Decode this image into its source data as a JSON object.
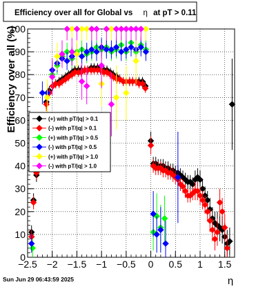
{
  "chart_data": {
    "type": "scatter",
    "title_prefix": "Efficiency over all for Global vs",
    "title_symbol": "η",
    "title_suffix": "at pT > 0.11",
    "xlabel": "η",
    "ylabel": "Efficiency over all (%)",
    "xlim": [
      -2.5,
      1.7
    ],
    "ylim": [
      0,
      100
    ],
    "xticks": [
      -2.5,
      -2,
      -1.5,
      -1,
      -0.5,
      0,
      0.5,
      1,
      1.5
    ],
    "xtick_labels": [
      "−2.5",
      "−2",
      "−1.5",
      "−1",
      "−0.5",
      "0",
      "0.5",
      "1",
      "1.5"
    ],
    "yticks": [
      0,
      10,
      20,
      30,
      40,
      50,
      60,
      70,
      80,
      90,
      100
    ],
    "ytick_labels": [
      "0",
      "10",
      "20",
      "30",
      "40",
      "50",
      "60",
      "70",
      "80",
      "90",
      "100"
    ],
    "grid": true,
    "legend_position": "left-middle",
    "timestamp": "Sun Jun 29 06:43:59 2025",
    "series": [
      {
        "name": "(+) with pT/|q| > 0.1",
        "color": "#000000",
        "marker": "diamond",
        "points": [
          [
            -2.42,
            11,
            3
          ],
          [
            -2.38,
            25,
            3
          ],
          [
            -2.32,
            36,
            3
          ],
          [
            -2.25,
            54,
            4
          ],
          [
            -2.19,
            60,
            3
          ],
          [
            -2.12,
            68,
            3
          ],
          [
            -2.06,
            73,
            2
          ],
          [
            -1.99,
            75,
            2
          ],
          [
            -1.93,
            76,
            2
          ],
          [
            -1.86,
            77,
            2
          ],
          [
            -1.8,
            78,
            2
          ],
          [
            -1.73,
            79,
            2
          ],
          [
            -1.67,
            80,
            2
          ],
          [
            -1.6,
            81,
            2
          ],
          [
            -1.54,
            82,
            2
          ],
          [
            -1.47,
            82,
            2
          ],
          [
            -1.41,
            82,
            2
          ],
          [
            -1.34,
            82,
            2
          ],
          [
            -1.28,
            82,
            2
          ],
          [
            -1.21,
            83,
            2
          ],
          [
            -1.15,
            83,
            2
          ],
          [
            -1.08,
            83,
            2
          ],
          [
            -1.02,
            82,
            2
          ],
          [
            -0.95,
            82,
            2
          ],
          [
            -0.89,
            82,
            2
          ],
          [
            -0.82,
            81,
            2
          ],
          [
            -0.76,
            80,
            2
          ],
          [
            -0.69,
            79,
            2
          ],
          [
            -0.63,
            78,
            2
          ],
          [
            -0.56,
            77,
            2
          ],
          [
            -0.5,
            77,
            2
          ],
          [
            -0.43,
            77,
            2
          ],
          [
            -0.37,
            77,
            2
          ],
          [
            -0.3,
            77,
            2
          ],
          [
            -0.24,
            77,
            2
          ],
          [
            -0.17,
            77,
            2
          ],
          [
            -0.11,
            75,
            2
          ],
          [
            0.0,
            51,
            4
          ],
          [
            0.05,
            41,
            3
          ],
          [
            0.1,
            41,
            3
          ],
          [
            0.15,
            40,
            3
          ],
          [
            0.2,
            40,
            3
          ],
          [
            0.25,
            40,
            3
          ],
          [
            0.3,
            39,
            3
          ],
          [
            0.35,
            39,
            3
          ],
          [
            0.4,
            38,
            3
          ],
          [
            0.45,
            38,
            3
          ],
          [
            0.5,
            37,
            3
          ],
          [
            0.55,
            37,
            3
          ],
          [
            0.6,
            36,
            3
          ],
          [
            0.65,
            35,
            3
          ],
          [
            0.7,
            34,
            3
          ],
          [
            0.75,
            33,
            3
          ],
          [
            0.8,
            33,
            3
          ],
          [
            0.85,
            32,
            3
          ],
          [
            0.9,
            34,
            4
          ],
          [
            0.95,
            35,
            4
          ],
          [
            1.0,
            34,
            4
          ],
          [
            1.05,
            30,
            4
          ],
          [
            1.1,
            27,
            4
          ],
          [
            1.15,
            25,
            4
          ],
          [
            1.2,
            21,
            5
          ],
          [
            1.25,
            17,
            5
          ],
          [
            1.3,
            15,
            5
          ],
          [
            1.35,
            14,
            6
          ],
          [
            1.4,
            13,
            6
          ],
          [
            1.45,
            12,
            6
          ],
          [
            1.5,
            9,
            6
          ],
          [
            1.55,
            6,
            6
          ],
          [
            1.6,
            7,
            6
          ],
          [
            1.65,
            67,
            20
          ]
        ]
      },
      {
        "name": "(-) with pT/|q| > 0.1",
        "color": "#ff0000",
        "marker": "diamond",
        "points": [
          [
            -2.42,
            9,
            3
          ],
          [
            -2.38,
            24,
            3
          ],
          [
            -2.32,
            37,
            3
          ],
          [
            -2.25,
            53,
            4
          ],
          [
            -2.19,
            59,
            3
          ],
          [
            -2.12,
            67,
            3
          ],
          [
            -2.06,
            72,
            2
          ],
          [
            -1.99,
            75,
            2
          ],
          [
            -1.93,
            76,
            2
          ],
          [
            -1.86,
            76,
            2
          ],
          [
            -1.8,
            77,
            2
          ],
          [
            -1.73,
            78,
            2
          ],
          [
            -1.67,
            79,
            2
          ],
          [
            -1.6,
            80,
            2
          ],
          [
            -1.54,
            81,
            2
          ],
          [
            -1.47,
            81,
            2
          ],
          [
            -1.41,
            81,
            2
          ],
          [
            -1.34,
            82,
            2
          ],
          [
            -1.28,
            82,
            2
          ],
          [
            -1.21,
            82,
            2
          ],
          [
            -1.15,
            82,
            2
          ],
          [
            -1.08,
            82,
            2
          ],
          [
            -1.02,
            82,
            2
          ],
          [
            -0.95,
            81,
            2
          ],
          [
            -0.89,
            81,
            2
          ],
          [
            -0.82,
            80,
            2
          ],
          [
            -0.76,
            79,
            2
          ],
          [
            -0.69,
            78,
            2
          ],
          [
            -0.63,
            78,
            2
          ],
          [
            -0.56,
            77,
            2
          ],
          [
            -0.5,
            77,
            2
          ],
          [
            -0.43,
            77,
            2
          ],
          [
            -0.37,
            77,
            2
          ],
          [
            -0.3,
            77,
            2
          ],
          [
            -0.24,
            76,
            2
          ],
          [
            -0.17,
            76,
            2
          ],
          [
            -0.11,
            74,
            2
          ],
          [
            0.0,
            49,
            4
          ],
          [
            0.05,
            40,
            3
          ],
          [
            0.1,
            39,
            3
          ],
          [
            0.15,
            39,
            3
          ],
          [
            0.2,
            39,
            3
          ],
          [
            0.25,
            38,
            3
          ],
          [
            0.3,
            38,
            3
          ],
          [
            0.35,
            37,
            3
          ],
          [
            0.4,
            37,
            3
          ],
          [
            0.45,
            36,
            3
          ],
          [
            0.5,
            35,
            3
          ],
          [
            0.55,
            34,
            3
          ],
          [
            0.6,
            32,
            3
          ],
          [
            0.65,
            31,
            3
          ],
          [
            0.7,
            29,
            3
          ],
          [
            0.75,
            27,
            3
          ],
          [
            0.8,
            27,
            3
          ],
          [
            0.85,
            28,
            3
          ],
          [
            0.9,
            29,
            4
          ],
          [
            0.95,
            29,
            4
          ],
          [
            1.0,
            27,
            4
          ],
          [
            1.05,
            25,
            4
          ],
          [
            1.1,
            23,
            4
          ],
          [
            1.15,
            20,
            4
          ],
          [
            1.2,
            16,
            5
          ],
          [
            1.25,
            12,
            5
          ],
          [
            1.3,
            8,
            5
          ],
          [
            1.35,
            11,
            6
          ],
          [
            1.4,
            24,
            6
          ],
          [
            1.45,
            20,
            6
          ],
          [
            1.5,
            13,
            6
          ],
          [
            1.55,
            4,
            6
          ]
        ]
      },
      {
        "name": "(+) with pT/|q| > 0.5",
        "color": "#00ff00",
        "marker": "diamond",
        "points": [
          [
            -2.4,
            4,
            4
          ],
          [
            -2.2,
            50,
            10
          ],
          [
            -2.0,
            80,
            5
          ],
          [
            -1.9,
            84,
            4
          ],
          [
            -1.8,
            88,
            4
          ],
          [
            -1.7,
            90,
            4
          ],
          [
            -1.6,
            87,
            4
          ],
          [
            -1.5,
            90,
            4
          ],
          [
            -1.4,
            91,
            4
          ],
          [
            -1.3,
            89,
            4
          ],
          [
            -1.2,
            90,
            4
          ],
          [
            -1.1,
            92,
            4
          ],
          [
            -1.0,
            91,
            4
          ],
          [
            -0.9,
            92,
            4
          ],
          [
            -0.8,
            90,
            4
          ],
          [
            -0.7,
            91,
            4
          ],
          [
            -0.6,
            93,
            4
          ],
          [
            -0.5,
            90,
            4
          ],
          [
            -0.4,
            94,
            4
          ],
          [
            -0.3,
            90,
            4
          ],
          [
            -0.2,
            93,
            4
          ],
          [
            -0.1,
            91,
            4
          ],
          [
            0.05,
            11,
            8
          ],
          [
            0.12,
            18,
            10
          ],
          [
            0.2,
            13,
            10
          ],
          [
            0.28,
            17,
            10
          ]
        ]
      },
      {
        "name": "(-) with pT/|q| > 0.5",
        "color": "#0000ff",
        "marker": "diamond",
        "points": [
          [
            -2.42,
            6,
            4
          ],
          [
            -2.35,
            53,
            8
          ],
          [
            -2.2,
            72,
            5
          ],
          [
            -2.1,
            72,
            4
          ],
          [
            -2.0,
            82,
            4
          ],
          [
            -1.9,
            85,
            4
          ],
          [
            -1.8,
            87,
            4
          ],
          [
            -1.7,
            86,
            4
          ],
          [
            -1.6,
            88,
            4
          ],
          [
            -1.5,
            89,
            4
          ],
          [
            -1.4,
            88,
            4
          ],
          [
            -1.3,
            90,
            4
          ],
          [
            -1.2,
            91,
            4
          ],
          [
            -1.1,
            90,
            4
          ],
          [
            -1.0,
            92,
            4
          ],
          [
            -0.9,
            91,
            4
          ],
          [
            -0.8,
            91,
            4
          ],
          [
            -0.7,
            92,
            4
          ],
          [
            -0.6,
            90,
            4
          ],
          [
            -0.5,
            91,
            4
          ],
          [
            -0.4,
            92,
            4
          ],
          [
            -0.3,
            91,
            4
          ],
          [
            -0.2,
            92,
            4
          ],
          [
            -0.1,
            90,
            4
          ],
          [
            0.05,
            19,
            10
          ],
          [
            0.12,
            10,
            8
          ],
          [
            0.2,
            12,
            10
          ],
          [
            0.3,
            6,
            10
          ],
          [
            0.55,
            35,
            20
          ]
        ]
      },
      {
        "name": "(+) with pT/|q| > 1.0",
        "color": "#ffff00",
        "marker": "diamond",
        "points": [
          [
            -2.1,
            70,
            8
          ],
          [
            -1.9,
            88,
            6
          ],
          [
            -1.7,
            100,
            5
          ],
          [
            -1.6,
            100,
            5
          ],
          [
            -1.5,
            89,
            6
          ],
          [
            -1.4,
            100,
            5
          ],
          [
            -1.3,
            100,
            5
          ],
          [
            -1.2,
            100,
            5
          ],
          [
            -1.1,
            100,
            5
          ],
          [
            -1.0,
            76,
            10
          ],
          [
            -0.9,
            100,
            5
          ],
          [
            -0.8,
            100,
            5
          ],
          [
            -0.7,
            70,
            14
          ],
          [
            -0.6,
            100,
            5
          ],
          [
            -0.5,
            72,
            12
          ],
          [
            -0.4,
            100,
            5
          ],
          [
            -0.3,
            86,
            10
          ],
          [
            -0.2,
            100,
            5
          ],
          [
            -0.1,
            100,
            5
          ]
        ]
      },
      {
        "name": "(-) with pT/|q| > 1.0",
        "color": "#ff00ff",
        "marker": "diamond",
        "points": [
          [
            -2.0,
            79,
            8
          ],
          [
            -1.8,
            89,
            6
          ],
          [
            -1.7,
            100,
            5
          ],
          [
            -1.6,
            90,
            6
          ],
          [
            -1.5,
            100,
            5
          ],
          [
            -1.4,
            77,
            8
          ],
          [
            -1.3,
            75,
            8
          ],
          [
            -1.2,
            100,
            5
          ],
          [
            -1.1,
            100,
            5
          ],
          [
            -1.0,
            84,
            10
          ],
          [
            -0.9,
            100,
            5
          ],
          [
            -0.8,
            67,
            14
          ],
          [
            -0.7,
            100,
            5
          ],
          [
            -0.6,
            100,
            5
          ],
          [
            -0.5,
            100,
            5
          ],
          [
            -0.4,
            100,
            5
          ],
          [
            -0.3,
            100,
            5
          ],
          [
            -0.2,
            100,
            5
          ]
        ]
      }
    ]
  }
}
